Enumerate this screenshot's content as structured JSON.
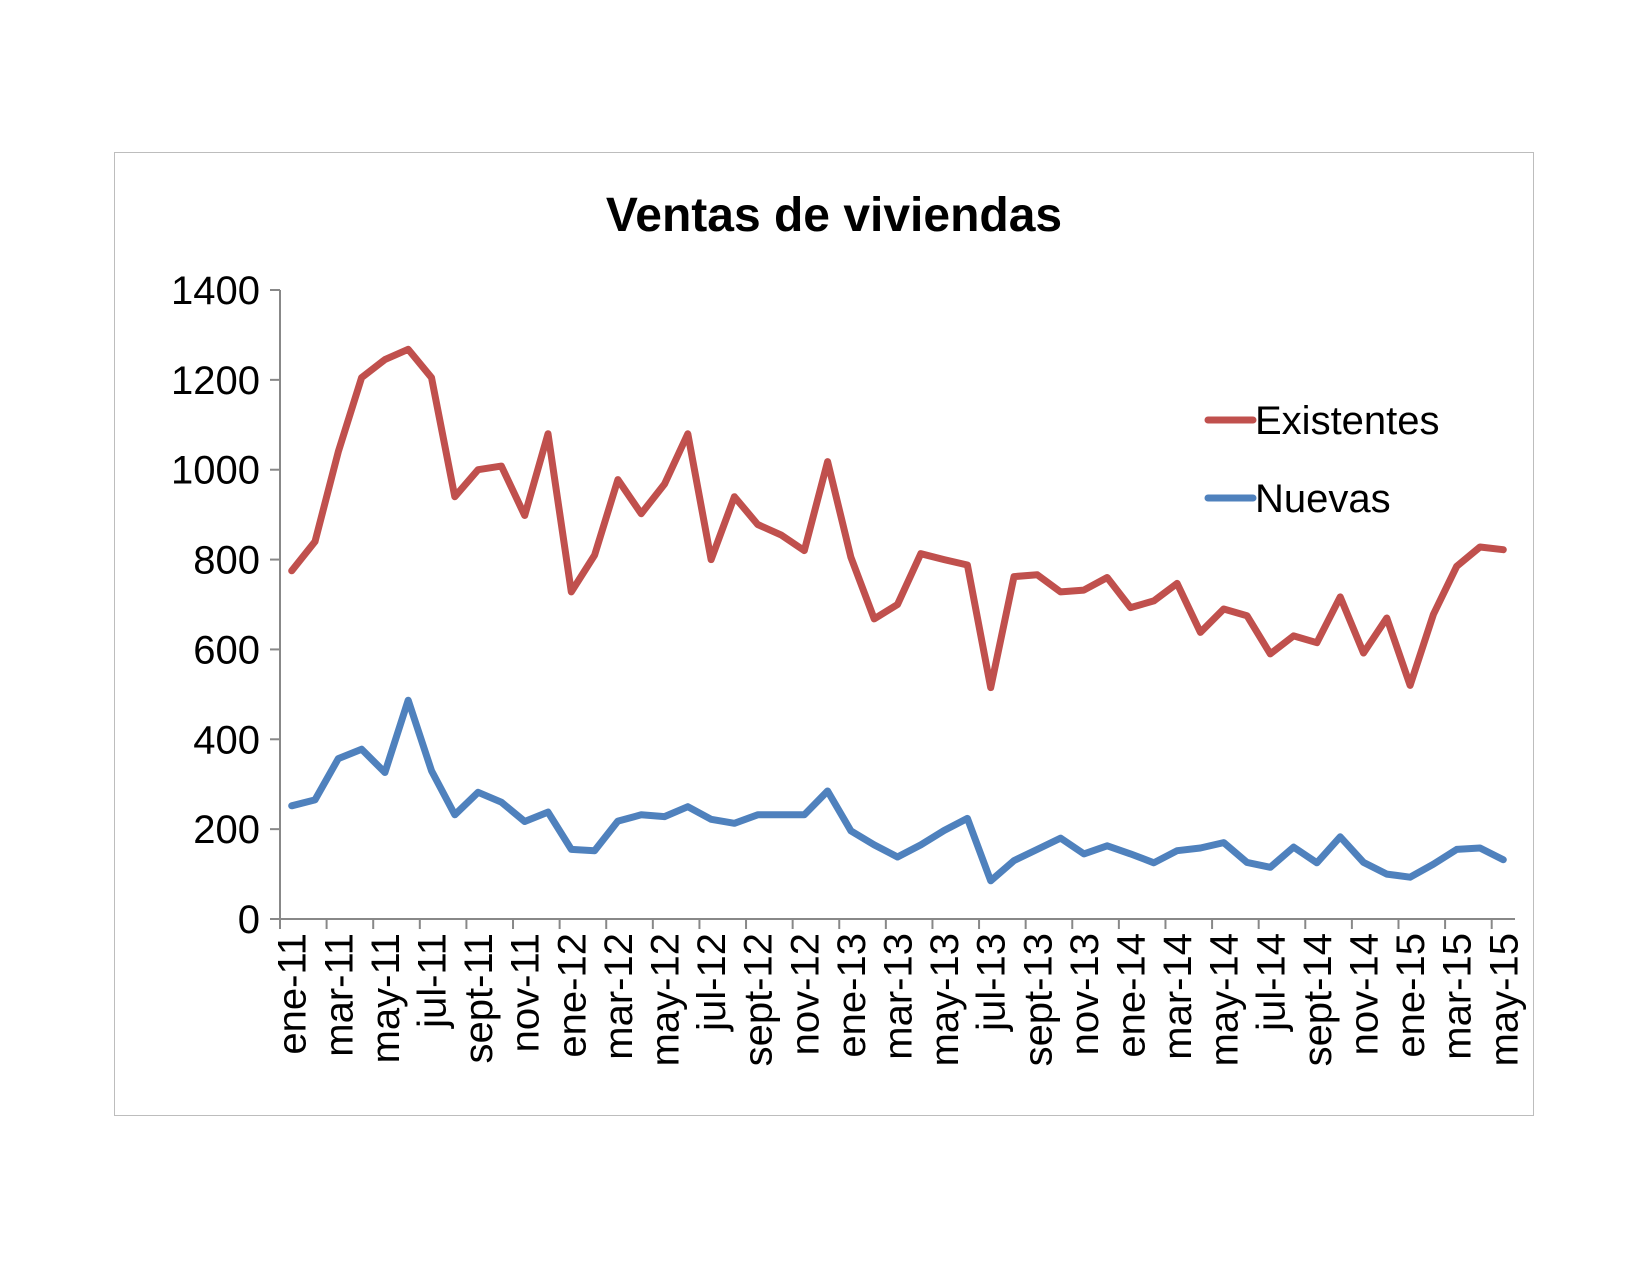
{
  "chart_data": {
    "type": "line",
    "title": "Ventas de viviendas",
    "xlabel": "",
    "ylabel": "",
    "ylim": [
      0,
      1400
    ],
    "yticks": [
      0,
      200,
      400,
      600,
      800,
      1000,
      1200,
      1400
    ],
    "grid": false,
    "legend_position": "right",
    "x": [
      "ene-11",
      "feb-11",
      "mar-11",
      "abr-11",
      "may-11",
      "jun-11",
      "jul-11",
      "ago-11",
      "sept-11",
      "oct-11",
      "nov-11",
      "dic-11",
      "ene-12",
      "feb-12",
      "mar-12",
      "abr-12",
      "may-12",
      "jun-12",
      "jul-12",
      "ago-12",
      "sept-12",
      "oct-12",
      "nov-12",
      "dic-12",
      "ene-13",
      "feb-13",
      "mar-13",
      "abr-13",
      "may-13",
      "jun-13",
      "jul-13",
      "ago-13",
      "sept-13",
      "oct-13",
      "nov-13",
      "dic-13",
      "ene-14",
      "feb-14",
      "mar-14",
      "abr-14",
      "may-14",
      "jun-14",
      "jul-14",
      "ago-14",
      "sept-14",
      "oct-14",
      "nov-14",
      "dic-14",
      "ene-15",
      "feb-15",
      "mar-15",
      "abr-15",
      "may-15"
    ],
    "tick_labels": [
      "ene-11",
      "mar-11",
      "may-11",
      "jul-11",
      "sept-11",
      "nov-11",
      "ene-12",
      "mar-12",
      "may-12",
      "jul-12",
      "sept-12",
      "nov-12",
      "ene-13",
      "mar-13",
      "may-13",
      "jul-13",
      "sept-13",
      "nov-13",
      "ene-14",
      "mar-14",
      "may-14",
      "jul-14",
      "sept-14",
      "nov-14",
      "ene-15",
      "mar-15",
      "may-15"
    ],
    "series": [
      {
        "name": "Existentes",
        "color": "#c0504d",
        "values": [
          775,
          840,
          1040,
          1205,
          1245,
          1268,
          1205,
          940,
          1000,
          1008,
          898,
          1080,
          728,
          810,
          978,
          902,
          968,
          1080,
          800,
          940,
          878,
          855,
          820,
          1018,
          805,
          668,
          700,
          813,
          800,
          788,
          515,
          762,
          766,
          728,
          732,
          760,
          693,
          708,
          747,
          638,
          690,
          675,
          590,
          630,
          615,
          717,
          592,
          670,
          520,
          678,
          785,
          828,
          822
        ]
      },
      {
        "name": "Nuevas",
        "color": "#4f81bd",
        "values": [
          252,
          265,
          357,
          378,
          326,
          487,
          330,
          232,
          282,
          260,
          217,
          238,
          155,
          152,
          218,
          232,
          228,
          250,
          222,
          213,
          232,
          232,
          232,
          285,
          196,
          165,
          138,
          165,
          197,
          224,
          85,
          130,
          155,
          180,
          145,
          163,
          145,
          125,
          152,
          158,
          170,
          126,
          115,
          160,
          125,
          183,
          126,
          100,
          93,
          122,
          155,
          158,
          132
        ]
      }
    ]
  }
}
